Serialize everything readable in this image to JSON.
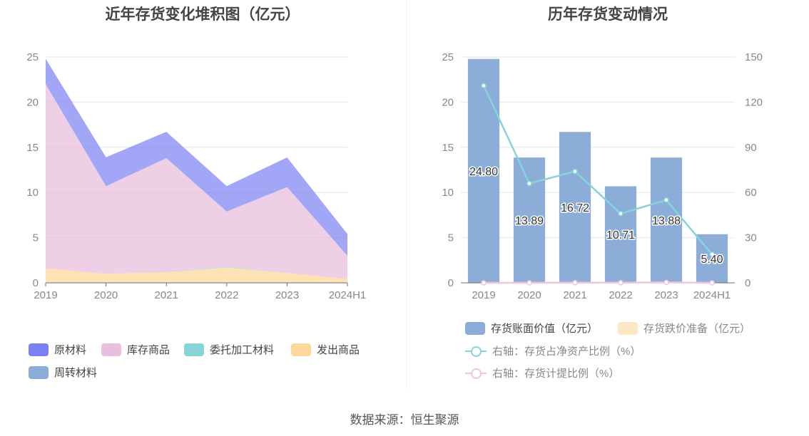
{
  "chart_data": [
    {
      "type": "area",
      "stacked": true,
      "title": "近年存货变化堆积图（亿元）",
      "categories": [
        "2019",
        "2020",
        "2021",
        "2022",
        "2023",
        "2024H1"
      ],
      "ylim": [
        0,
        25
      ],
      "yticks": [
        0,
        5,
        10,
        15,
        20,
        25
      ],
      "series": [
        {
          "name": "发出商品",
          "color": "#fdd89a",
          "values": [
            1.6,
            1.0,
            1.2,
            1.7,
            1.1,
            0.4
          ]
        },
        {
          "name": "委托加工材料",
          "color": "#86d4d8",
          "values": [
            0,
            0,
            0.05,
            0.05,
            0,
            0
          ]
        },
        {
          "name": "库存商品",
          "color": "#e8bfdc",
          "values": [
            20.4,
            9.7,
            12.55,
            6.15,
            9.5,
            2.6
          ]
        },
        {
          "name": "原材料",
          "color": "#7b80f2",
          "values": [
            2.8,
            3.2,
            2.92,
            2.81,
            3.28,
            2.4
          ]
        },
        {
          "name": "周转材料",
          "color": "#8dadd9",
          "values": [
            0,
            0,
            0,
            0,
            0,
            0
          ]
        }
      ],
      "legend_order": [
        "原材料",
        "库存商品",
        "委托加工材料",
        "发出商品",
        "周转材料"
      ]
    },
    {
      "type": "bar+line",
      "title": "历年存货变动情况",
      "categories": [
        "2019",
        "2020",
        "2021",
        "2022",
        "2023",
        "2024H1"
      ],
      "ylim": [
        0,
        25
      ],
      "yticks": [
        0,
        5,
        10,
        15,
        20,
        25
      ],
      "y2lim": [
        0,
        150
      ],
      "y2ticks": [
        0,
        30,
        60,
        90,
        120,
        150
      ],
      "bars": [
        {
          "name": "存货账面价值（亿元）",
          "color": "#8dadd9",
          "values": [
            24.8,
            13.89,
            16.72,
            10.71,
            13.88,
            5.4
          ],
          "labels": [
            "24.80",
            "13.89",
            "16.72",
            "10.71",
            "13.88",
            "5.40"
          ]
        },
        {
          "name": "存货跌价准备（亿元）",
          "color": "#fde6c2",
          "values": [
            0,
            0,
            0.02,
            0,
            0.05,
            0
          ]
        }
      ],
      "lines": [
        {
          "name": "右轴：存货占净资产比例（%）",
          "color": "#86d4d8",
          "values": [
            131,
            66,
            74,
            46,
            55,
            19
          ]
        },
        {
          "name": "右轴：存货计提比例（%）",
          "color": "#f0c4de",
          "values": [
            0,
            0,
            0.1,
            0.1,
            0.3,
            0
          ]
        }
      ]
    }
  ],
  "source": "数据来源：恒生聚源"
}
